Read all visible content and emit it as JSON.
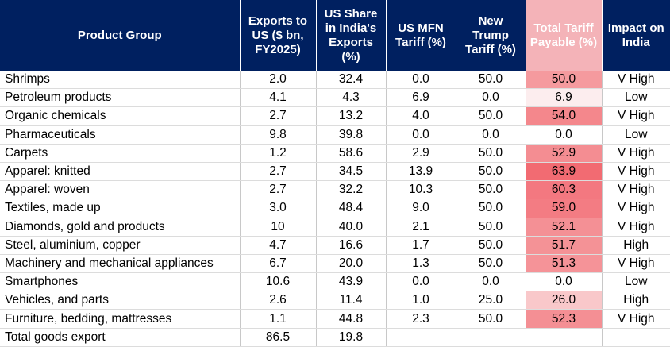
{
  "headers": {
    "product": "Product Group",
    "exports": "Exports to US ($ bn, FY2025)",
    "share": "US Share in India's Exports (%)",
    "mfn": "US MFN Tariff (%)",
    "trump": "New Trump Tariff (%)",
    "total": "Total Tariff Payable (%)",
    "impact": "Impact on India"
  },
  "colors": {
    "header_bg": "#002060",
    "total_header_bg": "#f4b3b8"
  },
  "rows": [
    {
      "product": "Shrimps",
      "exports": "2.0",
      "share": "32.4",
      "mfn": "0.0",
      "trump": "50.0",
      "total": "50.0",
      "impact": "V High",
      "total_color": "#f59a9e"
    },
    {
      "product": "Petroleum products",
      "exports": "4.1",
      "share": "4.3",
      "mfn": "6.9",
      "trump": "0.0",
      "total": "6.9",
      "impact": "Low",
      "total_color": "#fcedee"
    },
    {
      "product": "Organic chemicals",
      "exports": "2.7",
      "share": "13.2",
      "mfn": "4.0",
      "trump": "50.0",
      "total": "54.0",
      "impact": "V High",
      "total_color": "#f4878c"
    },
    {
      "product": "Pharmaceuticals",
      "exports": "9.8",
      "share": "39.8",
      "mfn": "0.0",
      "trump": "0.0",
      "total": "0.0",
      "impact": "Low",
      "total_color": "#ffffff"
    },
    {
      "product": "Carpets",
      "exports": "1.2",
      "share": "58.6",
      "mfn": "2.9",
      "trump": "50.0",
      "total": "52.9",
      "impact": "V High",
      "total_color": "#f48d92"
    },
    {
      "product": "Apparel: knitted",
      "exports": "2.7",
      "share": "34.5",
      "mfn": "13.9",
      "trump": "50.0",
      "total": "63.9",
      "impact": "V High",
      "total_color": "#f26b72"
    },
    {
      "product": "Apparel: woven",
      "exports": "2.7",
      "share": "32.2",
      "mfn": "10.3",
      "trump": "50.0",
      "total": "60.3",
      "impact": "V High",
      "total_color": "#f37880"
    },
    {
      "product": "Textiles, made up",
      "exports": "3.0",
      "share": "48.4",
      "mfn": "9.0",
      "trump": "50.0",
      "total": "59.0",
      "impact": "V High",
      "total_color": "#f37c83"
    },
    {
      "product": "Diamonds, gold and products",
      "exports": "10",
      "share": "40.0",
      "mfn": "2.1",
      "trump": "50.0",
      "total": "52.1",
      "impact": "V High",
      "total_color": "#f49095"
    },
    {
      "product": "Steel, aluminium, copper",
      "exports": "4.7",
      "share": "16.6",
      "mfn": "1.7",
      "trump": "50.0",
      "total": "51.7",
      "impact": "High",
      "total_color": "#f49296"
    },
    {
      "product": "Machinery and mechanical appliances",
      "exports": "6.7",
      "share": "20.0",
      "mfn": "1.3",
      "trump": "50.0",
      "total": "51.3",
      "impact": "V High",
      "total_color": "#f59398"
    },
    {
      "product": "Smartphones",
      "exports": "10.6",
      "share": "43.9",
      "mfn": "0.0",
      "trump": "0.0",
      "total": "0.0",
      "impact": "Low",
      "total_color": "#ffffff"
    },
    {
      "product": "Vehicles, and parts",
      "exports": "2.6",
      "share": "11.4",
      "mfn": "1.0",
      "trump": "25.0",
      "total": "26.0",
      "impact": "High",
      "total_color": "#f9c8ca"
    },
    {
      "product": "Furniture, bedding, mattresses",
      "exports": "1.1",
      "share": "44.8",
      "mfn": "2.3",
      "trump": "50.0",
      "total": "52.3",
      "impact": "V High",
      "total_color": "#f48f94"
    },
    {
      "product": "Total goods export",
      "exports": "86.5",
      "share": "19.8",
      "mfn": "",
      "trump": "",
      "total": "",
      "impact": "",
      "total_color": "#ffffff"
    }
  ]
}
